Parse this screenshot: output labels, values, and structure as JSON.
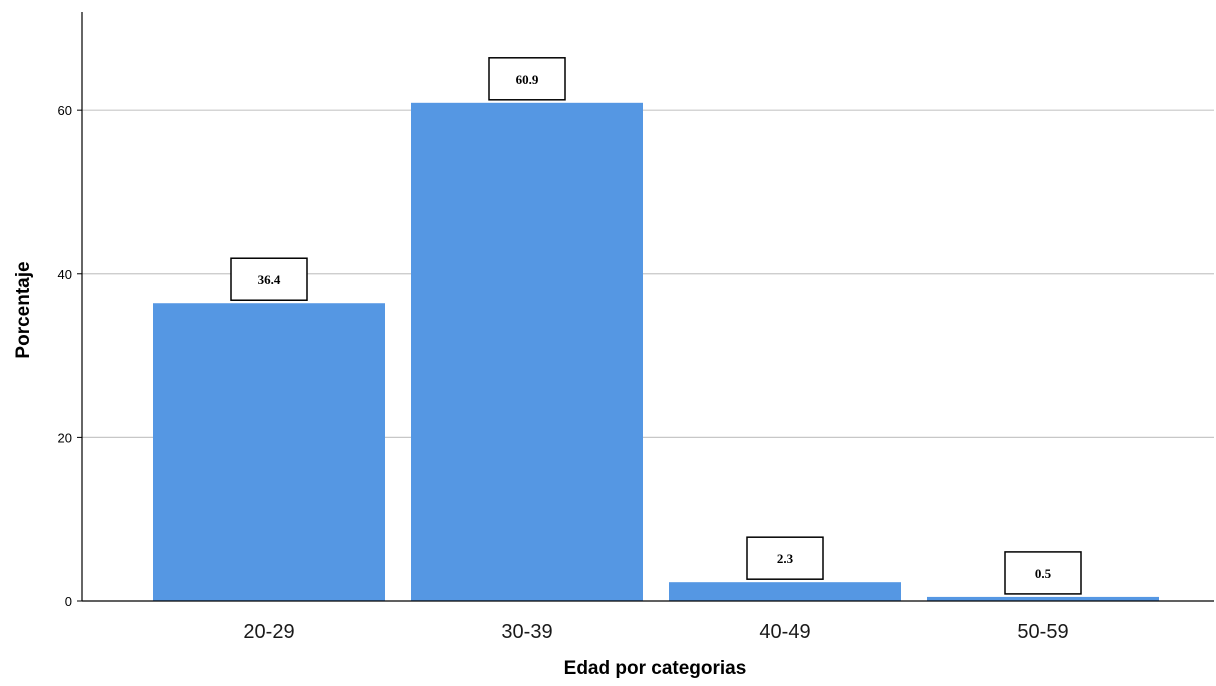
{
  "chart_data": {
    "type": "bar",
    "categories": [
      "20-29",
      "30-39",
      "40-49",
      "50-59"
    ],
    "values": [
      36.4,
      60.9,
      2.3,
      0.5
    ],
    "data_labels": [
      "36.4",
      "60.9",
      "2.3",
      "0.5"
    ],
    "title": "",
    "xlabel": "Edad por categorias",
    "ylabel": "Porcentaje",
    "ylim": [
      0,
      72
    ],
    "yticks": [
      0,
      20,
      40,
      60
    ],
    "ytick_labels": [
      "0",
      "20",
      "40",
      "60"
    ],
    "grid": true,
    "colors": {
      "bar": "#5597e3",
      "grid": "#c7c7c7",
      "axis": "#000000"
    }
  }
}
